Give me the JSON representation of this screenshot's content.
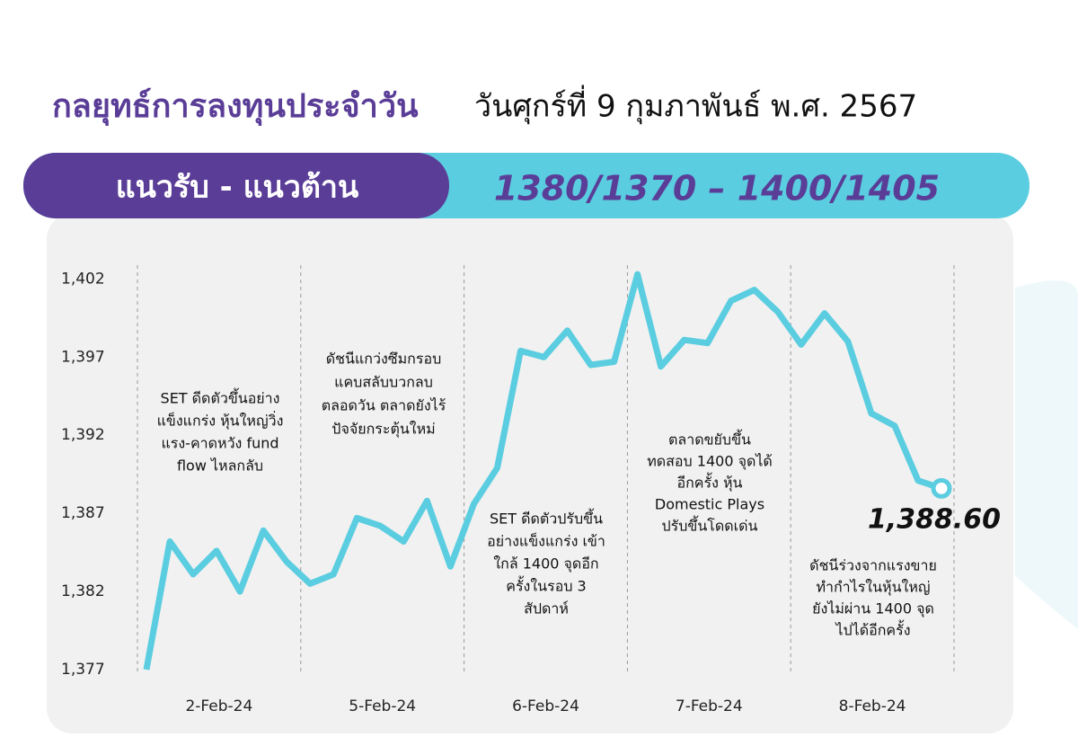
{
  "chart_data": {
    "type": "line",
    "title": "กลยุทธ์การลงทุนประจำวัน",
    "subtitle": "วันศุกร์ที่ 9 กุมภาพันธ์ พ.ศ. 2567",
    "banner_label": "แนวรับ - แนวต้าน",
    "banner_value": "1380/1370 – 1400/1405",
    "days": [
      "2-Feb-24",
      "5-Feb-24",
      "6-Feb-24",
      "7-Feb-24",
      "8-Feb-24"
    ],
    "values": [
      1377.0,
      1385.2,
      1383.1,
      1384.6,
      1382.0,
      1385.9,
      1383.9,
      1382.5,
      1383.1,
      1386.7,
      1386.2,
      1385.2,
      1387.8,
      1383.6,
      1387.6,
      1389.9,
      1397.4,
      1397.0,
      1398.7,
      1396.5,
      1396.7,
      1402.3,
      1396.4,
      1398.1,
      1397.9,
      1400.6,
      1401.3,
      1399.9,
      1397.8,
      1399.8,
      1398.0,
      1393.4,
      1392.6,
      1389.1,
      1388.6
    ],
    "last_label": "1,388.60",
    "color": "#5bcde0",
    "ylim": [
      1377,
      1403
    ],
    "yticks": [
      {
        "value": 1377,
        "label": "1,377"
      },
      {
        "value": 1382,
        "label": "1,382"
      },
      {
        "value": 1387,
        "label": "1,387"
      },
      {
        "value": 1392,
        "label": "1,392"
      },
      {
        "value": 1397,
        "label": "1,397"
      },
      {
        "value": 1402,
        "label": "1,402"
      }
    ],
    "annotations": [
      {
        "lines": [
          "SET ดีดตัวขึ้นอย่าง",
          "แข็งแกร่ง หุ้นใหญ่วิ่ง",
          "แรง-คาดหวัง fund",
          "flow ไหลกลับ"
        ]
      },
      {
        "lines": [
          "ดัชนีแกว่งซึมกรอบ",
          "แคบสลับบวกลบ",
          "ตลอดวัน ตลาดยังไร้",
          "ปัจจัยกระตุ้นใหม่"
        ]
      },
      {
        "lines": [
          "SET ดีดตัวปรับขึ้น",
          "อย่างแข็งแกร่ง เข้า",
          "ใกล้ 1400 จุดอีก",
          "ครั้งในรอบ 3",
          "สัปดาห์"
        ]
      },
      {
        "lines": [
          "ตลาดขยับขึ้น",
          "ทดสอบ 1400 จุดได้",
          "อีกครั้ง หุ้น",
          "Domestic Plays",
          "ปรับขึ้นโดดเด่น"
        ]
      },
      {
        "lines": [
          "ดัชนีร่วงจากแรงขาย",
          "ทำกำไรในหุ้นใหญ่",
          "ยังไม่ผ่าน 1400 จุด",
          "ไปได้อีกครั้ง"
        ]
      }
    ]
  }
}
